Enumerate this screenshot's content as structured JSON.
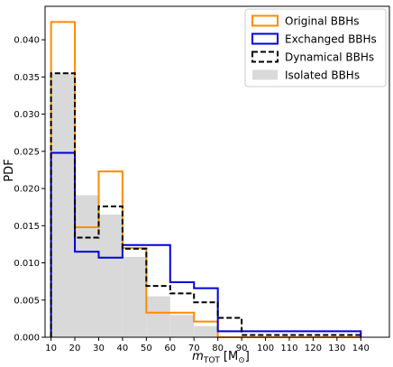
{
  "chart_data": {
    "type": "histogram",
    "bin_edges": [
      10,
      20,
      30,
      40,
      50,
      60,
      70,
      80,
      90,
      100,
      110,
      120,
      130,
      140
    ],
    "x_ticks": [
      10,
      20,
      30,
      40,
      50,
      60,
      70,
      80,
      90,
      100,
      110,
      120,
      130,
      140
    ],
    "y_ticks": [
      0.0,
      0.005,
      0.01,
      0.015,
      0.02,
      0.025,
      0.03,
      0.035,
      0.04
    ],
    "y_tick_labels": [
      "0.000",
      "0.005",
      "0.010",
      "0.015",
      "0.020",
      "0.025",
      "0.030",
      "0.035",
      "0.040"
    ],
    "xlim": [
      7.5,
      152
    ],
    "ylim": [
      0,
      0.0445
    ],
    "ylabel": "PDF",
    "xlabel_main": "m",
    "xlabel_sub": "TOT",
    "xlabel_unit_prefix": "[M",
    "xlabel_unit_sub": "⊙",
    "xlabel_unit_suffix": "]",
    "legend_position": "top-right",
    "series": [
      {
        "name": "Isolated BBHs",
        "style": "filled",
        "color": "#d9d9d9",
        "values": [
          0.0355,
          0.0191,
          0.0165,
          0.0108,
          0.0055,
          0.003,
          0.0015,
          0,
          0,
          0,
          0,
          0,
          0
        ]
      },
      {
        "name": "Original BBHs",
        "style": "step",
        "color": "#ff8c00",
        "values": [
          0.0424,
          0.0148,
          0.0223,
          0.012,
          0.0033,
          0.0033,
          0.0021,
          0,
          0,
          0,
          0,
          0,
          0
        ]
      },
      {
        "name": "Exchanged BBHs",
        "style": "step",
        "color": "#0000dd",
        "values": [
          0.0248,
          0.0115,
          0.0107,
          0.0124,
          0.0124,
          0.0074,
          0.0066,
          0.0008,
          0.0008,
          0.0008,
          0.0008,
          0.0008,
          0.0008
        ]
      },
      {
        "name": "Dynamical BBHs",
        "style": "dashed",
        "color": "#000000",
        "values": [
          0.0355,
          0.0134,
          0.0176,
          0.0119,
          0.0069,
          0.0059,
          0.0047,
          0.0026,
          0.0003,
          0.0003,
          0.0003,
          0.0003,
          0.0003
        ]
      }
    ],
    "legend_order": [
      "Original BBHs",
      "Exchanged BBHs",
      "Dynamical BBHs",
      "Isolated BBHs"
    ]
  }
}
